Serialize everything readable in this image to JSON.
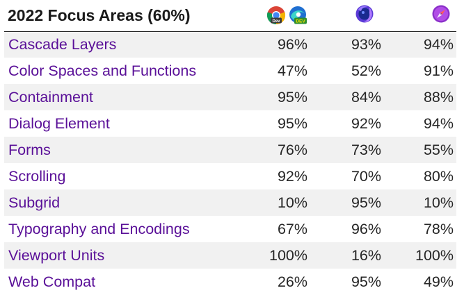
{
  "header": {
    "title": "2022 Focus Areas (60%)",
    "browsers": [
      {
        "name": "chrome-dev",
        "icons": [
          "chrome-dev-icon",
          "edge-dev-icon"
        ],
        "badges": [
          "Dev",
          "DEV"
        ]
      },
      {
        "name": "firefox",
        "icons": [
          "firefox-nightly-icon"
        ]
      },
      {
        "name": "safari",
        "icons": [
          "safari-technology-preview-icon"
        ]
      }
    ]
  },
  "rows": [
    {
      "name": "Cascade Layers",
      "values": [
        "96%",
        "93%",
        "94%"
      ]
    },
    {
      "name": "Color Spaces and Functions",
      "values": [
        "47%",
        "52%",
        "91%"
      ]
    },
    {
      "name": "Containment",
      "values": [
        "95%",
        "84%",
        "88%"
      ]
    },
    {
      "name": "Dialog Element",
      "values": [
        "95%",
        "92%",
        "94%"
      ]
    },
    {
      "name": "Forms",
      "values": [
        "76%",
        "73%",
        "55%"
      ]
    },
    {
      "name": "Scrolling",
      "values": [
        "92%",
        "70%",
        "80%"
      ]
    },
    {
      "name": "Subgrid",
      "values": [
        "10%",
        "95%",
        "10%"
      ]
    },
    {
      "name": "Typography and Encodings",
      "values": [
        "67%",
        "96%",
        "78%"
      ]
    },
    {
      "name": "Viewport Units",
      "values": [
        "100%",
        "16%",
        "100%"
      ]
    },
    {
      "name": "Web Compat",
      "values": [
        "26%",
        "95%",
        "49%"
      ]
    }
  ],
  "colors": {
    "link": "#5a1098",
    "stripe": "#f1f1f1",
    "text": "#262626"
  }
}
